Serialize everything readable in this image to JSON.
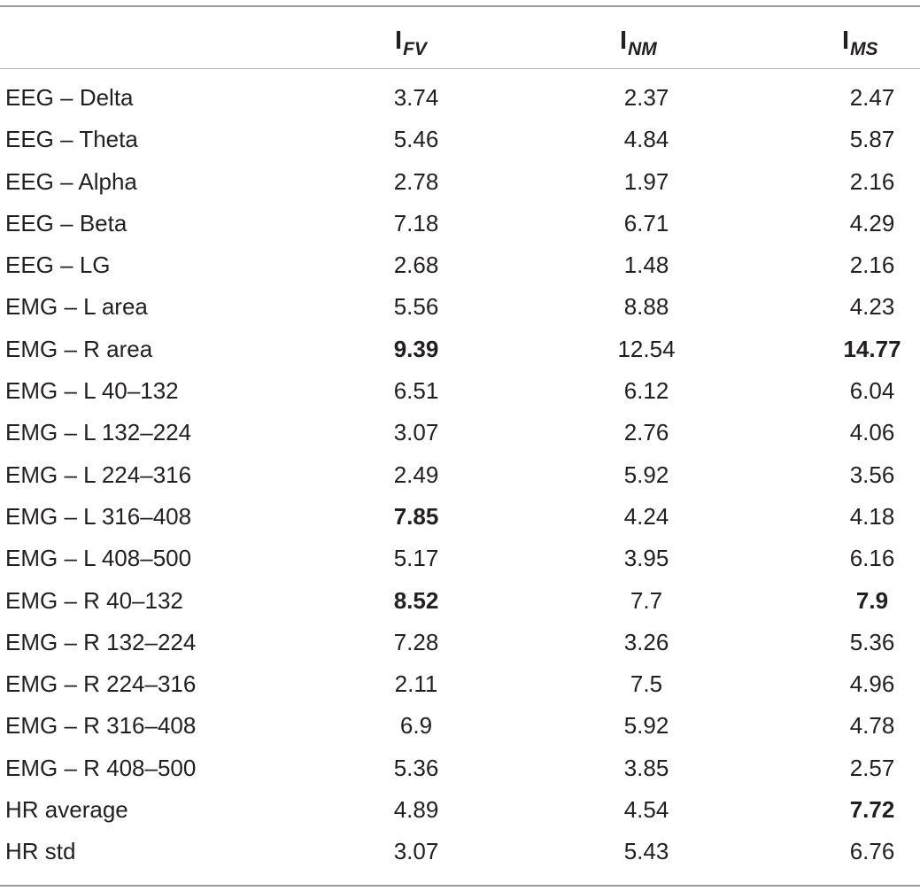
{
  "header": {
    "col_fv": {
      "main": "I",
      "sub": "FV"
    },
    "col_nm": {
      "main": "I",
      "sub": "NM"
    },
    "col_ms": {
      "main": "I",
      "sub": "MS"
    }
  },
  "rows": [
    {
      "label": "EEG – Delta",
      "fv": "3.74",
      "nm": "2.37",
      "ms": "2.47",
      "bold": []
    },
    {
      "label": "EEG – Theta",
      "fv": "5.46",
      "nm": "4.84",
      "ms": "5.87",
      "bold": []
    },
    {
      "label": "EEG – Alpha",
      "fv": "2.78",
      "nm": "1.97",
      "ms": "2.16",
      "bold": []
    },
    {
      "label": "EEG – Beta",
      "fv": "7.18",
      "nm": "6.71",
      "ms": "4.29",
      "bold": []
    },
    {
      "label": "EEG – LG",
      "fv": "2.68",
      "nm": "1.48",
      "ms": "2.16",
      "bold": []
    },
    {
      "label": "EMG – L area",
      "fv": "5.56",
      "nm": "8.88",
      "ms": "4.23",
      "bold": []
    },
    {
      "label": "EMG – R area",
      "fv": "9.39",
      "nm": "12.54",
      "ms": "14.77",
      "bold": [
        "fv",
        "ms"
      ]
    },
    {
      "label": "EMG – L 40–132",
      "fv": "6.51",
      "nm": "6.12",
      "ms": "6.04",
      "bold": []
    },
    {
      "label": "EMG – L 132–224",
      "fv": "3.07",
      "nm": "2.76",
      "ms": "4.06",
      "bold": []
    },
    {
      "label": "EMG – L 224–316",
      "fv": "2.49",
      "nm": "5.92",
      "ms": "3.56",
      "bold": []
    },
    {
      "label": "EMG – L 316–408",
      "fv": "7.85",
      "nm": "4.24",
      "ms": "4.18",
      "bold": [
        "fv"
      ]
    },
    {
      "label": "EMG – L 408–500",
      "fv": "5.17",
      "nm": "3.95",
      "ms": "6.16",
      "bold": []
    },
    {
      "label": "EMG – R 40–132",
      "fv": "8.52",
      "nm": "7.7",
      "ms": "7.9",
      "bold": [
        "fv",
        "ms"
      ]
    },
    {
      "label": "EMG – R 132–224",
      "fv": "7.28",
      "nm": "3.26",
      "ms": "5.36",
      "bold": []
    },
    {
      "label": "EMG – R 224–316",
      "fv": "2.11",
      "nm": "7.5",
      "ms": "4.96",
      "bold": []
    },
    {
      "label": "EMG – R 316–408",
      "fv": "6.9",
      "nm": "5.92",
      "ms": "4.78",
      "bold": []
    },
    {
      "label": "EMG – R 408–500",
      "fv": "5.36",
      "nm": "3.85",
      "ms": "2.57",
      "bold": []
    },
    {
      "label": "HR average",
      "fv": "4.89",
      "nm": "4.54",
      "ms": "7.72",
      "bold": [
        "ms"
      ]
    },
    {
      "label": "HR std",
      "fv": "3.07",
      "nm": "5.43",
      "ms": "6.76",
      "bold": []
    }
  ]
}
